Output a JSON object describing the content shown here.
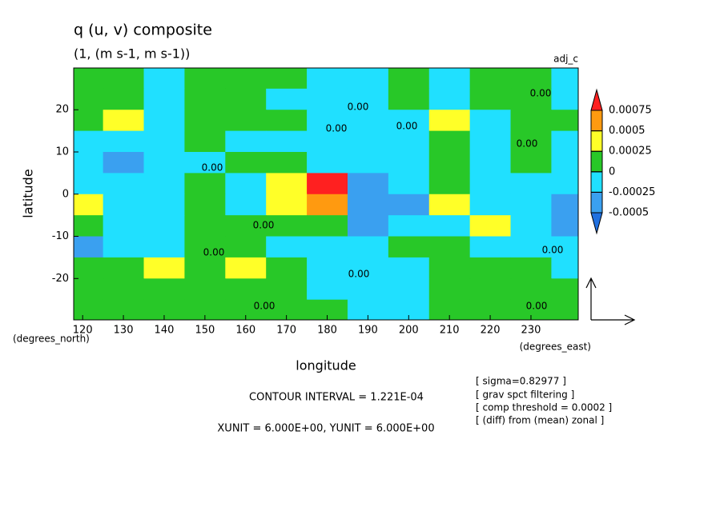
{
  "chart_data": {
    "type": "contour",
    "title": "q (u, v) composite",
    "subtitle": "(1, (m s-1, m s-1))",
    "label_right": "adj_c",
    "x_label": "longitude",
    "y_label": "latitude",
    "x_unit": "(degrees_east)",
    "y_unit": "(degrees_north)",
    "notes": [
      "CONTOUR INTERVAL = 1.221E-04",
      "XUNIT = 6.000E+00, YUNIT = 6.000E+00"
    ],
    "options": [
      "[ sigma=0.82977 ]",
      "[ grav spct filtering ]",
      "[ comp threshold = 0.0002 ]",
      "[ (diff) from (mean) zonal ]"
    ],
    "contour_labels": [
      "0.00",
      "0.00",
      "0.00",
      "0.00",
      "0.00",
      "0.00",
      "0.00",
      "0.00",
      "0.00",
      "0.00",
      "0.00",
      "0.00"
    ],
    "xlim": [
      117.8,
      241.6
    ],
    "ylim": [
      -29.8,
      29.9
    ],
    "xticks": [
      120,
      130,
      140,
      150,
      160,
      170,
      180,
      190,
      200,
      210,
      220,
      230
    ],
    "yticks": [
      -20,
      -10,
      0,
      10,
      20
    ],
    "levels": [
      -0.0005,
      -0.00025,
      0,
      0.00025,
      0.0005,
      0.00075
    ],
    "colors": [
      "#2070e0",
      "#3aa0f0",
      "#20e0ff",
      "#28c828",
      "#ffff28",
      "#ff9a10",
      "#ff2020"
    ],
    "field": {
      "lon": [
        120,
        130,
        140,
        150,
        160,
        170,
        180,
        190,
        200,
        210,
        220,
        230,
        240
      ],
      "lat": [
        27.5,
        22.5,
        17.5,
        12.5,
        7.5,
        2.5,
        -2.5,
        -7.5,
        -12.5,
        -17.5,
        -22.5,
        -27.5
      ],
      "values": [
        [
          0.0001,
          0.0001,
          -0.0001,
          0.0001,
          0.0001,
          0.0001,
          -0.0001,
          -0.0001,
          0.0001,
          -0.0001,
          0.0001,
          0.0001,
          -0.0001
        ],
        [
          0.0001,
          0.0001,
          -0.0001,
          0.0001,
          0.0001,
          -0.0001,
          -0.0001,
          -0.0002,
          0.0001,
          -0.0001,
          0.0001,
          0.0001,
          -0.0001
        ],
        [
          0.0001,
          0.0003,
          -0.0002,
          0.0001,
          0.0001,
          0.0001,
          -0.0001,
          -0.0001,
          -0.0001,
          0.0003,
          -0.0001,
          0.0001,
          0.0001
        ],
        [
          -0.0001,
          -0.0001,
          -0.0001,
          0.0001,
          -0.0001,
          -0.0001,
          -0.0001,
          -0.0002,
          -0.0001,
          0.0001,
          -0.0001,
          0.0001,
          -0.0001
        ],
        [
          -0.0002,
          -0.0003,
          -0.0002,
          -0.0001,
          0.0001,
          0.0002,
          -0.0002,
          -0.0001,
          -0.0001,
          0.0001,
          -0.0001,
          0.0001,
          -0.0001
        ],
        [
          -0.0001,
          -0.0002,
          -0.0001,
          0.0001,
          -0.0001,
          0.0004,
          0.0008,
          -0.0004,
          -0.0002,
          0.0001,
          -0.0001,
          -0.0001,
          -0.0002
        ],
        [
          0.0003,
          -0.0001,
          -0.0001,
          0.0001,
          -0.0001,
          0.0003,
          0.0006,
          -0.0005,
          -0.0003,
          0.0003,
          -0.0001,
          -0.0001,
          -0.0003
        ],
        [
          0.0002,
          -0.0001,
          -0.0001,
          0.0001,
          0.0001,
          0.0001,
          0.0001,
          -0.0003,
          -0.0001,
          -0.0001,
          0.0003,
          -0.0001,
          -0.0003
        ],
        [
          -0.0003,
          -0.0001,
          -0.0001,
          0.0001,
          0.0001,
          -0.0001,
          -0.0001,
          -0.0001,
          0.0001,
          0.0001,
          -0.0001,
          -0.0001,
          -0.0001
        ],
        [
          0.0001,
          0.0001,
          0.0003,
          0.0001,
          0.0003,
          0.0001,
          -0.0001,
          -0.0002,
          -0.0001,
          0.0001,
          0.0001,
          0.0001,
          -0.0001
        ],
        [
          0.0001,
          0.0001,
          0.0001,
          0.0001,
          0.0001,
          0.0001,
          -0.0001,
          -0.0001,
          -0.0001,
          0.0001,
          0.0001,
          0.0001,
          0.0001
        ],
        [
          0.0001,
          0.0001,
          0.0001,
          0.0001,
          0.0001,
          0.0001,
          0.0001,
          -0.0001,
          -0.0001,
          0.0001,
          0.0001,
          0.0001,
          0.0001
        ]
      ]
    }
  }
}
